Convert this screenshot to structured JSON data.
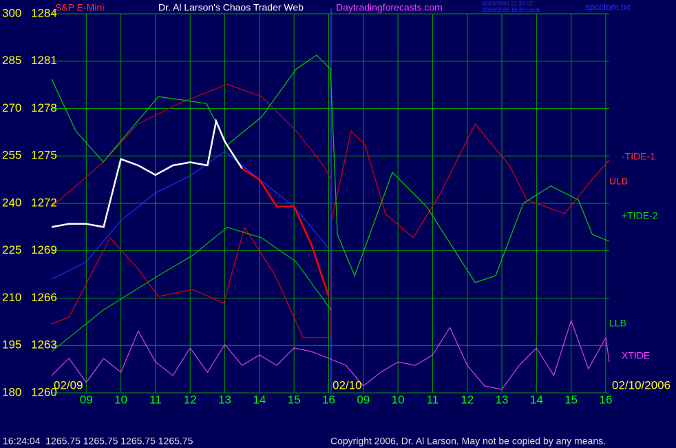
{
  "chart_data": {
    "type": "line",
    "instrument": "S&P E-Mini",
    "title": "Dr. Al Larson's Chaos Trader Web",
    "website": "Daytradingforecasts.com",
    "timestamps": [
      "02/09/2006 21:30 UT",
      "02/09/2006 16:30 Local"
    ],
    "file": "spcctom.txt",
    "date_labels": [
      "02/09",
      "02/10",
      "02/10/2006"
    ],
    "status": "16:24:04  1265.75 1265.75 1265.75 1265.75",
    "copyright": "Copyright 2006, Dr. Al Larson. May not be copied by any means.",
    "grid": true,
    "xlim": [
      8,
      24.1
    ],
    "xticks": [
      {
        "value": 9,
        "label": "09"
      },
      10,
      11,
      12,
      13,
      14,
      15,
      16,
      {
        "value": 17,
        "label": "09"
      },
      {
        "value": 18,
        "label": "10"
      },
      {
        "value": 19,
        "label": "11"
      },
      {
        "value": 20,
        "label": "12"
      },
      {
        "value": 21,
        "label": "13"
      },
      {
        "value": 22,
        "label": "14"
      },
      {
        "value": 23,
        "label": "15"
      },
      {
        "value": 24,
        "label": "16"
      }
    ],
    "ylim": [
      180,
      300
    ],
    "yticks": [
      180,
      195,
      210,
      225,
      240,
      255,
      270,
      285,
      300
    ],
    "y2lim": [
      1260,
      1284
    ],
    "y2ticks": [
      1260,
      1263,
      1266,
      1269,
      1272,
      1275,
      1278,
      1281,
      1284
    ],
    "series": [
      {
        "name": "-TIDE-1",
        "color": "#e00000",
        "x": [
          8,
          8.5,
          9.69,
          10.49,
          11.08,
          12.08,
          12.97,
          13.57,
          14.46,
          15.26,
          16.07,
          16.08,
          16.65,
          17.05,
          17.64,
          18.44,
          19.23,
          20.23,
          21.22,
          21.72,
          22.81,
          23.61,
          24.1
        ],
        "values": [
          201.8,
          204.0,
          229.1,
          219.3,
          210.5,
          212.7,
          208.4,
          232.4,
          217.1,
          197.5,
          197.5,
          234.5,
          262.9,
          258.5,
          236.7,
          229.1,
          243.3,
          265.1,
          252.0,
          241.1,
          236.7,
          247.6,
          253.7
        ]
      },
      {
        "name": "ULB",
        "color": "#d00000",
        "x": [
          8,
          8.7,
          9.49,
          10.49,
          11.68,
          13.07,
          14.06,
          15.06,
          15.85,
          16.07
        ],
        "values": [
          238.9,
          245.5,
          253.1,
          265.1,
          271.6,
          277.7,
          273.8,
          262.9,
          252.0,
          247.6
        ]
      },
      {
        "name": "+TIDE-2",
        "color": "#00d000",
        "x": [
          8,
          8.7,
          9.49,
          11.08,
          12.47,
          13.07,
          14.06,
          15.06,
          15.65,
          16.05,
          16.25,
          16.75,
          17.84,
          18.83,
          20.23,
          20.82,
          21.62,
          22.41,
          23.21,
          23.61,
          24.1
        ],
        "values": [
          279.3,
          262.9,
          253.1,
          273.8,
          271.6,
          258.5,
          267.3,
          282.5,
          286.9,
          282.5,
          230.2,
          217.1,
          249.8,
          238.9,
          214.9,
          217.1,
          240.0,
          245.5,
          241.1,
          230.2,
          228.0
        ]
      },
      {
        "name": "LLB",
        "color": "#00c000",
        "x": [
          8,
          8.5,
          9.49,
          11.08,
          12.08,
          13.07,
          14.06,
          15.06,
          16.07
        ],
        "values": [
          193.1,
          197.5,
          206.2,
          217.1,
          223.6,
          232.4,
          229.1,
          221.5,
          206.2
        ]
      },
      {
        "name": "XTIDE",
        "color": "#e040e0",
        "x": [
          8,
          8.5,
          9,
          9.5,
          10,
          10.5,
          11,
          11.5,
          12,
          12.5,
          13,
          13.5,
          14,
          14.5,
          15,
          15.5,
          16,
          16.5,
          17,
          17.5,
          18,
          18.5,
          19,
          19.5,
          20,
          20.5,
          21,
          21.5,
          22,
          22.5,
          23,
          23.5,
          24,
          24.1
        ],
        "values": [
          185.5,
          190.9,
          183.3,
          190.9,
          186.5,
          199.6,
          189.8,
          185.5,
          194.2,
          186.5,
          195.3,
          188.7,
          192.0,
          188.7,
          194.2,
          193.1,
          190.9,
          188.7,
          182.2,
          186.5,
          189.8,
          188.7,
          192.0,
          200.7,
          188.7,
          182.2,
          181.1,
          188.7,
          194.2,
          185.5,
          202.9,
          187.6,
          197.5,
          189.8
        ]
      },
      {
        "color": "#2828ff",
        "x": [
          8,
          9,
          10,
          11,
          12,
          13,
          14,
          15,
          16
        ],
        "values": [
          216.0,
          221.5,
          234.5,
          243.3,
          248.7,
          256.4,
          247.6,
          238.9,
          225.8
        ]
      },
      {
        "color": "#ffffff",
        "axis": "y2",
        "x": [
          8,
          8.5,
          9,
          9.5,
          10,
          10.5,
          11,
          11.5,
          12,
          12.5,
          12.75,
          13,
          13.5
        ],
        "values": [
          1270.5,
          1270.7,
          1270.7,
          1270.5,
          1274.8,
          1274.4,
          1273.8,
          1274.4,
          1274.6,
          1274.4,
          1277.2,
          1275.9,
          1274.2
        ]
      },
      {
        "color": "#ff0000",
        "axis": "y2",
        "x": [
          13.5,
          14,
          14.5,
          15,
          15.5,
          16
        ],
        "values": [
          1274.2,
          1273.5,
          1271.8,
          1271.8,
          1269.4,
          1266.1
        ]
      }
    ]
  }
}
